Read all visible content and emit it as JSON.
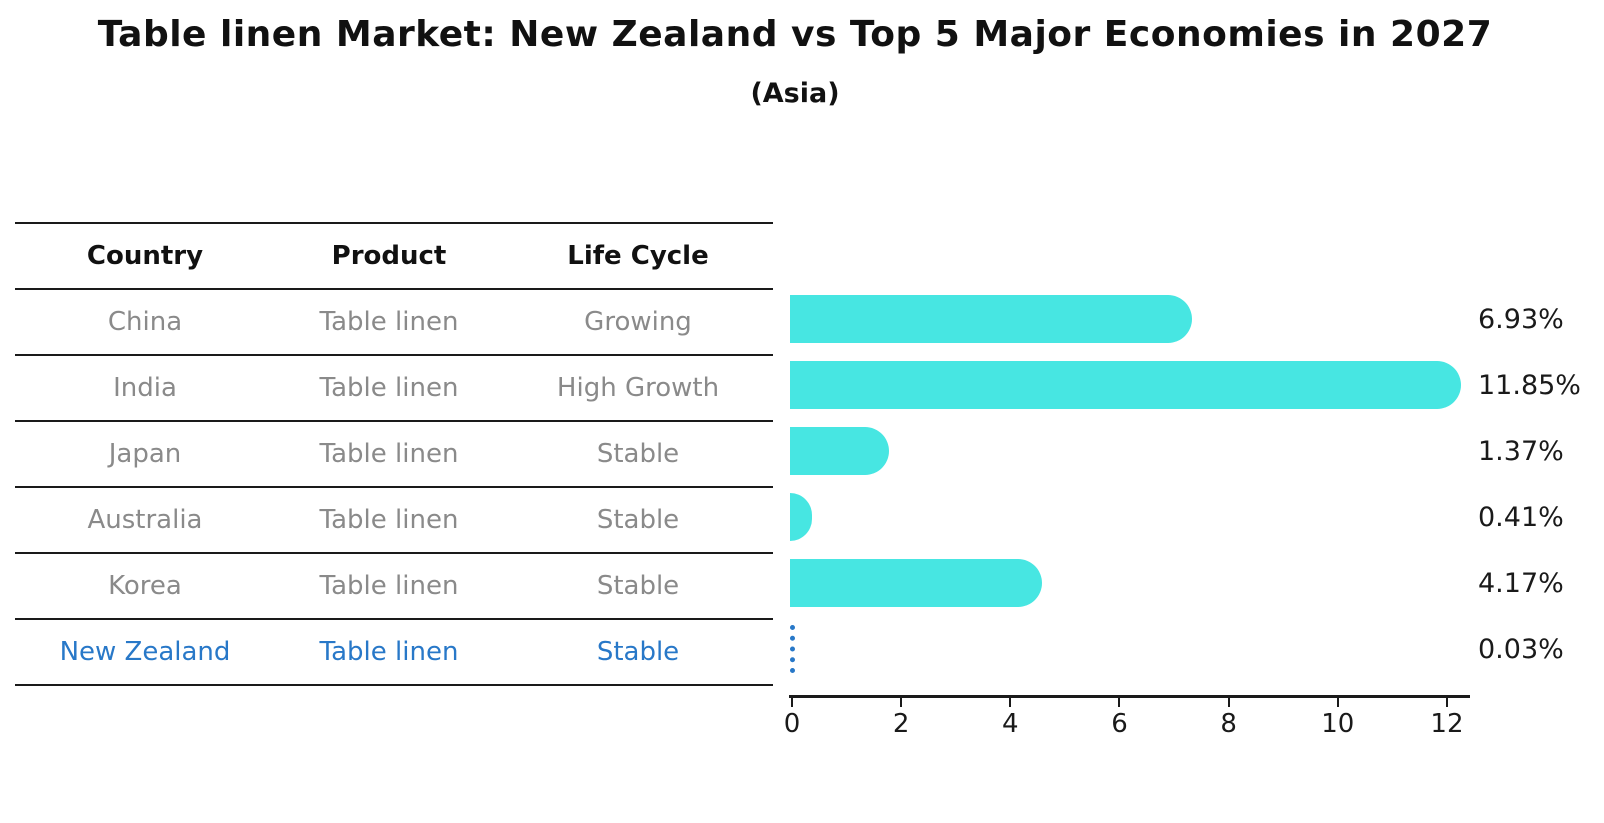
{
  "title": "Table linen Market: New Zealand vs Top 5 Major Economies in 2027",
  "subtitle": "(Asia)",
  "table": {
    "headers": [
      "Country",
      "Product",
      "Life Cycle"
    ],
    "rows": [
      {
        "country": "China",
        "product": "Table linen",
        "life_cycle": "Growing",
        "highlight": false
      },
      {
        "country": "India",
        "product": "Table linen",
        "life_cycle": "High Growth",
        "highlight": false
      },
      {
        "country": "Japan",
        "product": "Table linen",
        "life_cycle": "Stable",
        "highlight": false
      },
      {
        "country": "Australia",
        "product": "Table linen",
        "life_cycle": "Stable",
        "highlight": false
      },
      {
        "country": "Korea",
        "product": "Table linen",
        "life_cycle": "Stable",
        "highlight": false
      },
      {
        "country": "New Zealand",
        "product": "Table linen",
        "life_cycle": "Stable",
        "highlight": true
      }
    ]
  },
  "chart_data": {
    "type": "bar",
    "orientation": "horizontal",
    "title": "Table linen Market: New Zealand vs Top 5 Major Economies in 2027",
    "subtitle": "(Asia)",
    "categories": [
      "China",
      "India",
      "Japan",
      "Australia",
      "Korea",
      "New Zealand"
    ],
    "values": [
      6.93,
      11.85,
      1.37,
      0.41,
      4.17,
      0.03
    ],
    "value_labels": [
      "6.93%",
      "11.85%",
      "1.37%",
      "0.41%",
      "4.17%",
      "0.03%"
    ],
    "unit": "percent",
    "xlabel": "",
    "ylabel": "",
    "x_axis": {
      "ticks": [
        0,
        2,
        4,
        6,
        8,
        10,
        12
      ],
      "min": 0,
      "max": 12.5
    },
    "grid": false,
    "legend": false,
    "highlight_category": "New Zealand",
    "bar_color": "#47E6E2",
    "highlight_color": "#2878C8"
  },
  "colors": {
    "background": "#FFFFFF",
    "bar": "#47E6E2",
    "highlight": "#2878C8",
    "table_text": "#8A8A8A",
    "line": "#1A1A1A"
  }
}
